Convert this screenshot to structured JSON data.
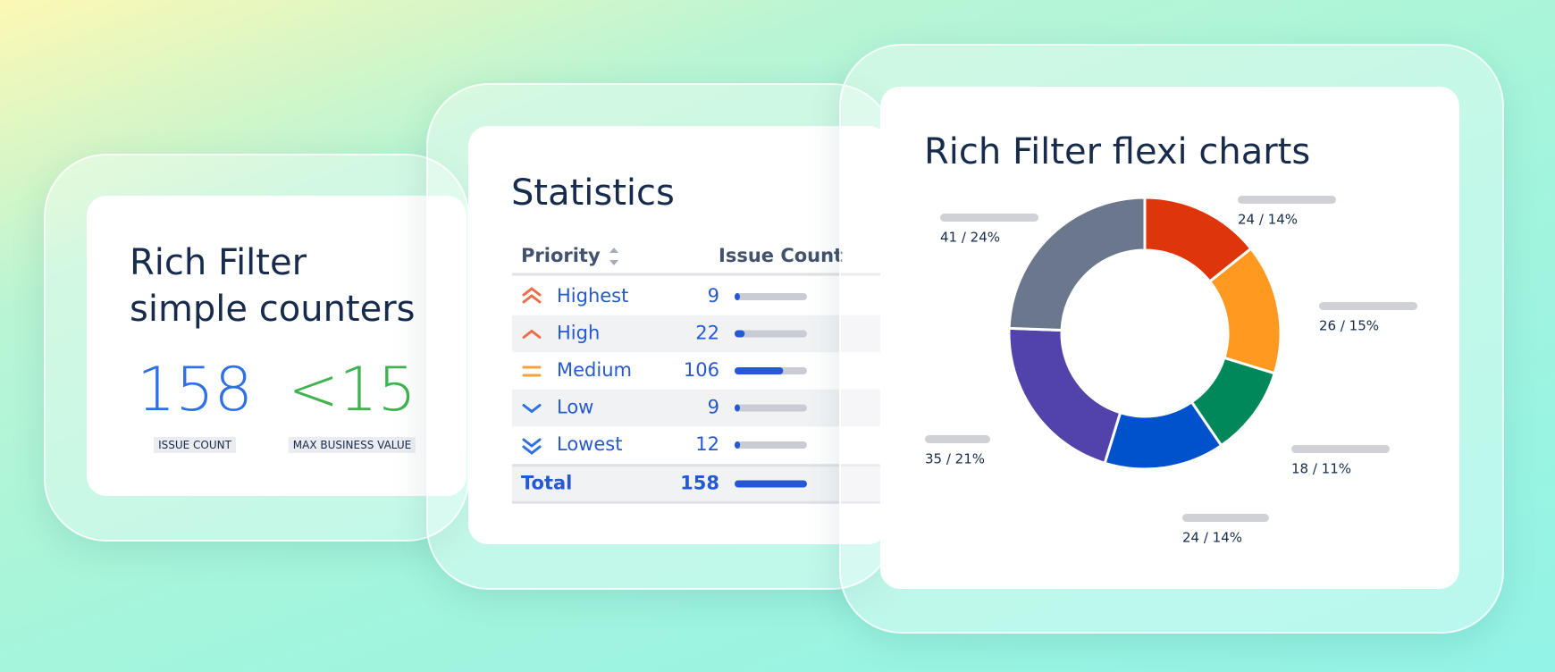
{
  "counters": {
    "title_line1": "Rich Filter",
    "title_line2": "simple counters",
    "items": [
      {
        "value": "158",
        "label": "ISSUE COUNT",
        "color": "#2f6fe8"
      },
      {
        "value": "<15",
        "label": "MAX BUSINESS VALUE",
        "color": "#3fb34f"
      }
    ]
  },
  "statistics": {
    "title": "Statistics",
    "header": [
      "Priority",
      "Issue Count"
    ],
    "max": 158,
    "rows": [
      {
        "name": "Highest",
        "count": 9,
        "icon_color": "#f06b4a"
      },
      {
        "name": "High",
        "count": 22,
        "icon_color": "#f06b4a"
      },
      {
        "name": "Medium",
        "count": 106,
        "icon_color": "#f7a33a"
      },
      {
        "name": "Low",
        "count": 9,
        "icon_color": "#2f6fe8"
      },
      {
        "name": "Lowest",
        "count": 12,
        "icon_color": "#2f6fe8"
      }
    ],
    "total": {
      "name": "Total",
      "count": 158
    }
  },
  "flexi_chart": {
    "type": "donut",
    "title": "Rich Filter flexi charts",
    "slices": [
      {
        "value": 24,
        "label": "24 / 14%",
        "color": "#de350b"
      },
      {
        "value": 26,
        "label": "26 / 15%",
        "color": "#ff991f"
      },
      {
        "value": 18,
        "label": "18 / 11%",
        "color": "#00875a"
      },
      {
        "value": 24,
        "label": "24 / 14%",
        "color": "#0052cc"
      },
      {
        "value": 35,
        "label": "35 / 21%",
        "color": "#5243aa"
      },
      {
        "value": 41,
        "label": "41 / 24%",
        "color": "#6b778c"
      }
    ]
  }
}
